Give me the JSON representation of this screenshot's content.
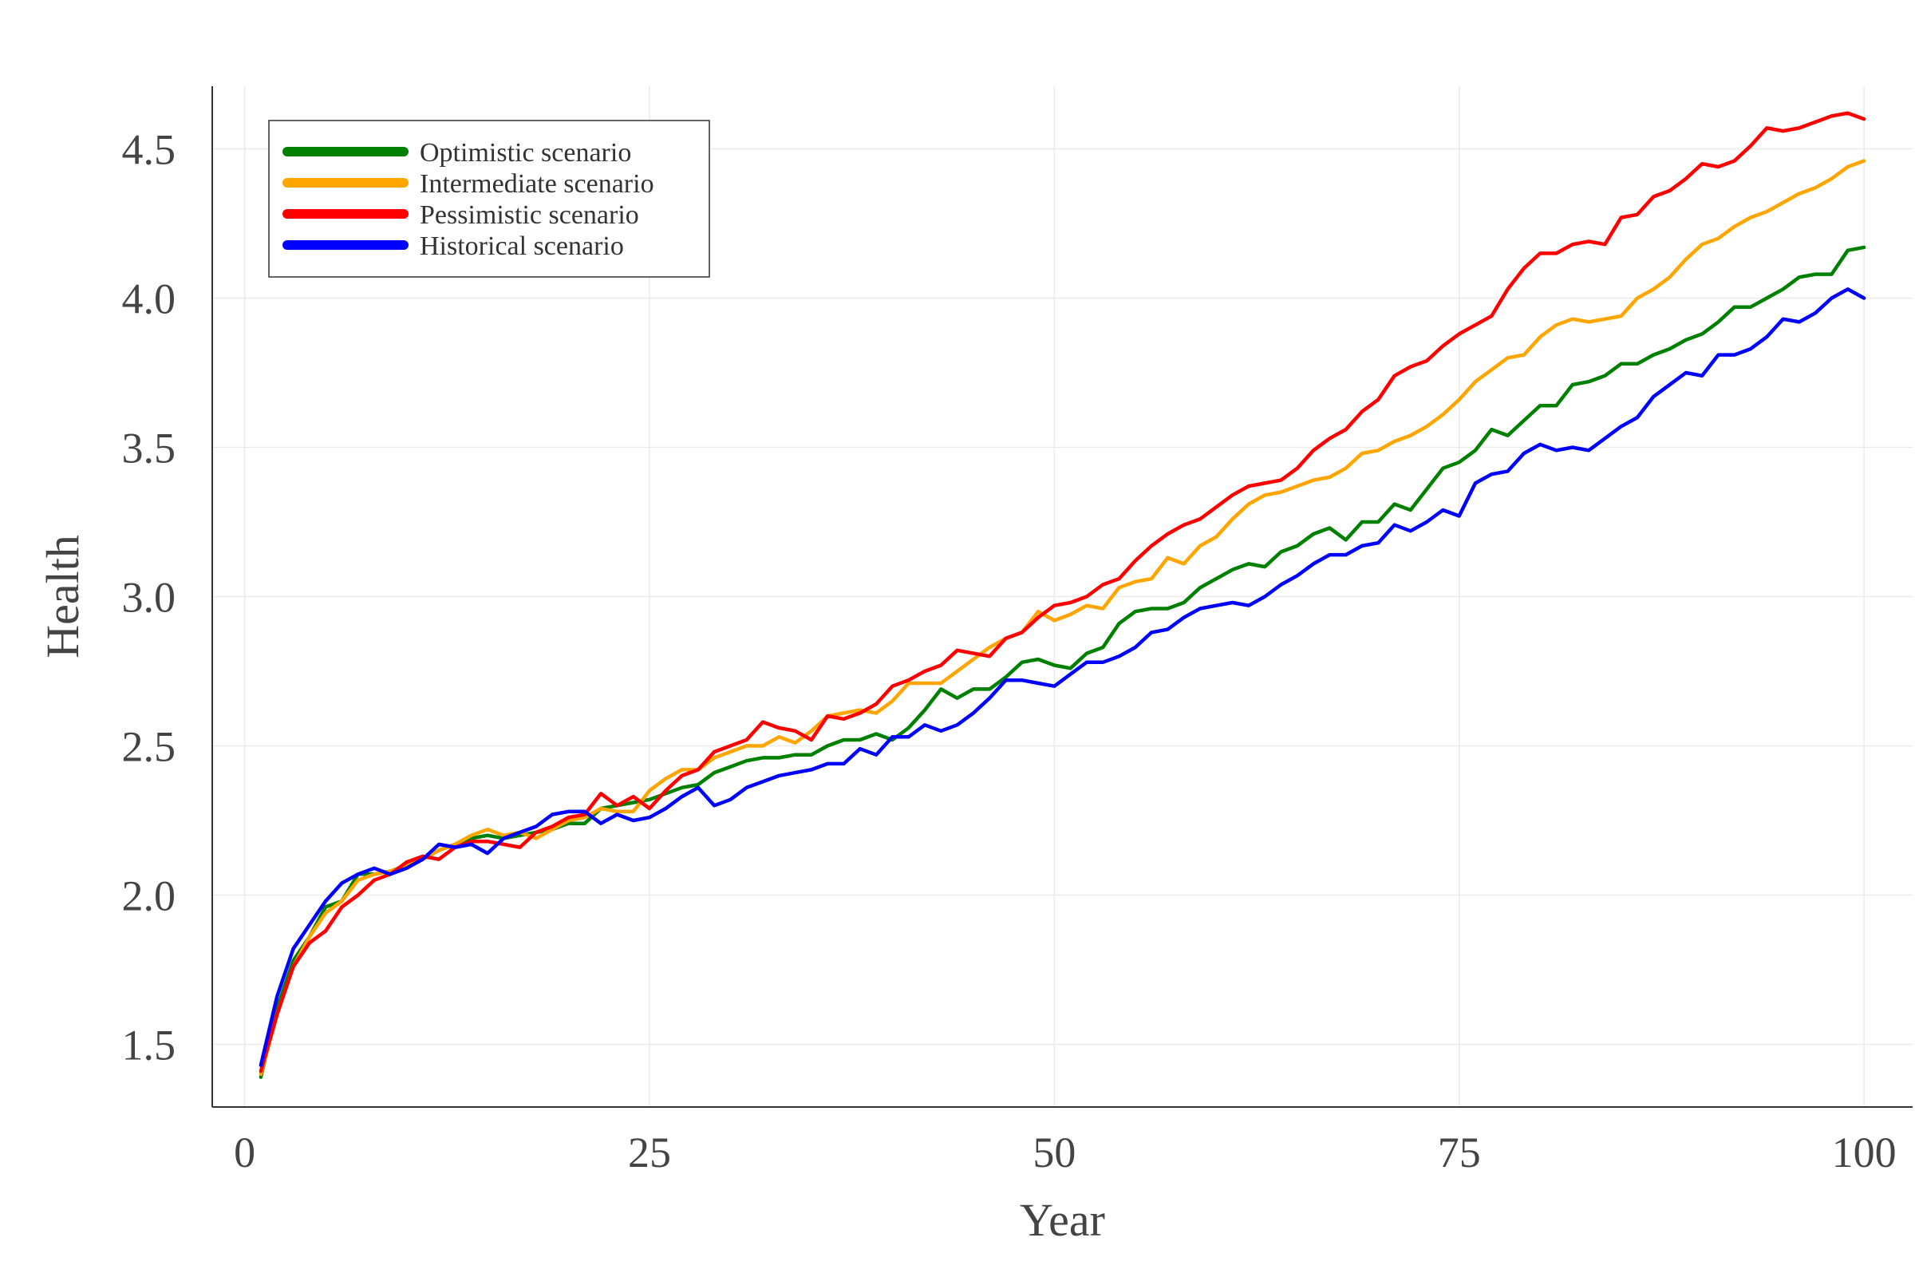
{
  "chart_data": {
    "type": "line",
    "title": "",
    "xlabel": "Year",
    "ylabel": "Health",
    "xlim": [
      -2,
      103
    ],
    "ylim": [
      1.29,
      4.71
    ],
    "xticks": [
      0,
      25,
      50,
      75,
      100
    ],
    "xtick_labels": [
      "0",
      "25",
      "50",
      "75",
      "100"
    ],
    "yticks": [
      1.5,
      2.0,
      2.5,
      3.0,
      3.5,
      4.0,
      4.5
    ],
    "ytick_labels": [
      "1.5",
      "2.0",
      "2.5",
      "3.0",
      "3.5",
      "4.0",
      "4.5"
    ],
    "grid": true,
    "legend_position": "top-left",
    "x": [
      1,
      2,
      3,
      4,
      5,
      6,
      7,
      8,
      9,
      10,
      11,
      12,
      13,
      14,
      15,
      16,
      17,
      18,
      19,
      20,
      21,
      22,
      23,
      24,
      25,
      26,
      27,
      28,
      29,
      30,
      31,
      32,
      33,
      34,
      35,
      36,
      37,
      38,
      39,
      40,
      41,
      42,
      43,
      44,
      45,
      46,
      47,
      48,
      49,
      50,
      51,
      52,
      53,
      54,
      55,
      56,
      57,
      58,
      59,
      60,
      61,
      62,
      63,
      64,
      65,
      66,
      67,
      68,
      69,
      70,
      71,
      72,
      73,
      74,
      75,
      76,
      77,
      78,
      79,
      80,
      81,
      82,
      83,
      84,
      85,
      86,
      87,
      88,
      89,
      90,
      91,
      92,
      93,
      94,
      95,
      96,
      97,
      98,
      99,
      100
    ],
    "series": [
      {
        "name": "Optimistic scenario",
        "color": "#008000",
        "values": [
          1.39,
          1.62,
          1.78,
          1.86,
          1.96,
          1.98,
          2.07,
          2.07,
          2.08,
          2.1,
          2.12,
          2.15,
          2.17,
          2.19,
          2.2,
          2.19,
          2.2,
          2.21,
          2.22,
          2.24,
          2.24,
          2.29,
          2.3,
          2.31,
          2.32,
          2.34,
          2.36,
          2.37,
          2.41,
          2.43,
          2.45,
          2.46,
          2.46,
          2.47,
          2.47,
          2.5,
          2.52,
          2.52,
          2.54,
          2.52,
          2.56,
          2.62,
          2.69,
          2.66,
          2.69,
          2.69,
          2.73,
          2.78,
          2.79,
          2.77,
          2.76,
          2.81,
          2.83,
          2.91,
          2.95,
          2.96,
          2.96,
          2.98,
          3.03,
          3.06,
          3.09,
          3.11,
          3.1,
          3.15,
          3.17,
          3.21,
          3.23,
          3.19,
          3.25,
          3.25,
          3.31,
          3.29,
          3.36,
          3.43,
          3.45,
          3.49,
          3.56,
          3.54,
          3.59,
          3.64,
          3.64,
          3.71,
          3.72,
          3.74,
          3.78,
          3.78,
          3.81,
          3.83,
          3.86,
          3.88,
          3.92,
          3.97,
          3.97,
          4.0,
          4.03,
          4.07,
          4.08,
          4.08,
          4.16,
          4.17
        ]
      },
      {
        "name": "Intermediate scenario",
        "color": "#FFA500",
        "values": [
          1.4,
          1.6,
          1.76,
          1.86,
          1.94,
          1.98,
          2.05,
          2.07,
          2.08,
          2.1,
          2.12,
          2.15,
          2.17,
          2.2,
          2.22,
          2.2,
          2.21,
          2.19,
          2.22,
          2.25,
          2.26,
          2.29,
          2.28,
          2.28,
          2.35,
          2.39,
          2.42,
          2.42,
          2.46,
          2.48,
          2.5,
          2.5,
          2.53,
          2.51,
          2.55,
          2.6,
          2.61,
          2.62,
          2.61,
          2.65,
          2.71,
          2.71,
          2.71,
          2.75,
          2.79,
          2.83,
          2.86,
          2.88,
          2.95,
          2.92,
          2.94,
          2.97,
          2.96,
          3.03,
          3.05,
          3.06,
          3.13,
          3.11,
          3.17,
          3.2,
          3.26,
          3.31,
          3.34,
          3.35,
          3.37,
          3.39,
          3.4,
          3.43,
          3.48,
          3.49,
          3.52,
          3.54,
          3.57,
          3.61,
          3.66,
          3.72,
          3.76,
          3.8,
          3.81,
          3.87,
          3.91,
          3.93,
          3.92,
          3.93,
          3.94,
          4.0,
          4.03,
          4.07,
          4.13,
          4.18,
          4.2,
          4.24,
          4.27,
          4.29,
          4.32,
          4.35,
          4.37,
          4.4,
          4.44,
          4.46
        ]
      },
      {
        "name": "Pessimistic scenario",
        "color": "#FF0000",
        "values": [
          1.41,
          1.6,
          1.76,
          1.84,
          1.88,
          1.96,
          2.0,
          2.05,
          2.07,
          2.11,
          2.13,
          2.12,
          2.16,
          2.18,
          2.18,
          2.17,
          2.16,
          2.21,
          2.23,
          2.26,
          2.27,
          2.34,
          2.3,
          2.33,
          2.29,
          2.35,
          2.4,
          2.42,
          2.48,
          2.5,
          2.52,
          2.58,
          2.56,
          2.55,
          2.52,
          2.6,
          2.59,
          2.61,
          2.64,
          2.7,
          2.72,
          2.75,
          2.77,
          2.82,
          2.81,
          2.8,
          2.86,
          2.88,
          2.93,
          2.97,
          2.98,
          3.0,
          3.04,
          3.06,
          3.12,
          3.17,
          3.21,
          3.24,
          3.26,
          3.3,
          3.34,
          3.37,
          3.38,
          3.39,
          3.43,
          3.49,
          3.53,
          3.56,
          3.62,
          3.66,
          3.74,
          3.77,
          3.79,
          3.84,
          3.88,
          3.91,
          3.94,
          4.03,
          4.1,
          4.15,
          4.15,
          4.18,
          4.19,
          4.18,
          4.27,
          4.28,
          4.34,
          4.36,
          4.4,
          4.45,
          4.44,
          4.46,
          4.51,
          4.57,
          4.56,
          4.57,
          4.59,
          4.61,
          4.62,
          4.6
        ]
      },
      {
        "name": "Historical scenario",
        "color": "#0000FF",
        "values": [
          1.43,
          1.66,
          1.82,
          1.9,
          1.98,
          2.04,
          2.07,
          2.09,
          2.07,
          2.09,
          2.12,
          2.17,
          2.16,
          2.17,
          2.14,
          2.19,
          2.21,
          2.23,
          2.27,
          2.28,
          2.28,
          2.24,
          2.27,
          2.25,
          2.26,
          2.29,
          2.33,
          2.36,
          2.3,
          2.32,
          2.36,
          2.38,
          2.4,
          2.41,
          2.42,
          2.44,
          2.44,
          2.49,
          2.47,
          2.53,
          2.53,
          2.57,
          2.55,
          2.57,
          2.61,
          2.66,
          2.72,
          2.72,
          2.71,
          2.7,
          2.74,
          2.78,
          2.78,
          2.8,
          2.83,
          2.88,
          2.89,
          2.93,
          2.96,
          2.97,
          2.98,
          2.97,
          3.0,
          3.04,
          3.07,
          3.11,
          3.14,
          3.14,
          3.17,
          3.18,
          3.24,
          3.22,
          3.25,
          3.29,
          3.27,
          3.38,
          3.41,
          3.42,
          3.48,
          3.51,
          3.49,
          3.5,
          3.49,
          3.53,
          3.57,
          3.6,
          3.67,
          3.71,
          3.75,
          3.74,
          3.81,
          3.81,
          3.83,
          3.87,
          3.93,
          3.92,
          3.95,
          4.0,
          4.03,
          4.0
        ]
      }
    ]
  }
}
